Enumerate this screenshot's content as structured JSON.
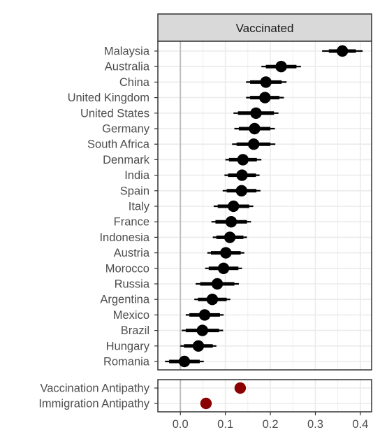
{
  "chart_data": {
    "type": "dot-whisker",
    "facet_title": "Vaccinated",
    "x_ticks": [
      0.0,
      0.1,
      0.2,
      0.3,
      0.4
    ],
    "x_tick_labels": [
      "0.0",
      "0.1",
      "0.2",
      "0.3",
      "0.4"
    ],
    "xlim": [
      -0.05,
      0.425
    ],
    "reference_line_x": 0,
    "grid": true,
    "colors": {
      "point": "#000000",
      "antipathy_point": "#8b0000",
      "reference_line": "#bdbdbd",
      "grid": "#ebebeb",
      "strip": "#d9d9d9",
      "border": "#333333"
    },
    "countries": [
      {
        "label": "Malaysia",
        "estimate": 0.36,
        "ci95": [
          0.315,
          0.405
        ],
        "ci90": [
          0.33,
          0.39
        ]
      },
      {
        "label": "Australia",
        "estimate": 0.224,
        "ci95": [
          0.18,
          0.268
        ],
        "ci90": [
          0.19,
          0.258
        ]
      },
      {
        "label": "China",
        "estimate": 0.19,
        "ci95": [
          0.146,
          0.236
        ],
        "ci90": [
          0.155,
          0.225
        ]
      },
      {
        "label": "United Kingdom",
        "estimate": 0.188,
        "ci95": [
          0.146,
          0.23
        ],
        "ci90": [
          0.155,
          0.22
        ]
      },
      {
        "label": "United States",
        "estimate": 0.168,
        "ci95": [
          0.118,
          0.218
        ],
        "ci90": [
          0.128,
          0.208
        ]
      },
      {
        "label": "Germany",
        "estimate": 0.165,
        "ci95": [
          0.12,
          0.21
        ],
        "ci90": [
          0.13,
          0.2
        ]
      },
      {
        "label": "South Africa",
        "estimate": 0.163,
        "ci95": [
          0.115,
          0.211
        ],
        "ci90": [
          0.125,
          0.2
        ]
      },
      {
        "label": "Denmark",
        "estimate": 0.139,
        "ci95": [
          0.1,
          0.18
        ],
        "ci90": [
          0.108,
          0.17
        ]
      },
      {
        "label": "India",
        "estimate": 0.137,
        "ci95": [
          0.098,
          0.176
        ],
        "ci90": [
          0.106,
          0.168
        ]
      },
      {
        "label": "Spain",
        "estimate": 0.136,
        "ci95": [
          0.094,
          0.178
        ],
        "ci90": [
          0.103,
          0.169
        ]
      },
      {
        "label": "Italy",
        "estimate": 0.118,
        "ci95": [
          0.074,
          0.162
        ],
        "ci90": [
          0.083,
          0.153
        ]
      },
      {
        "label": "France",
        "estimate": 0.113,
        "ci95": [
          0.069,
          0.157
        ],
        "ci90": [
          0.078,
          0.148
        ]
      },
      {
        "label": "Indonesia",
        "estimate": 0.11,
        "ci95": [
          0.072,
          0.148
        ],
        "ci90": [
          0.08,
          0.14
        ]
      },
      {
        "label": "Austria",
        "estimate": 0.101,
        "ci95": [
          0.06,
          0.142
        ],
        "ci90": [
          0.068,
          0.134
        ]
      },
      {
        "label": "Morocco",
        "estimate": 0.096,
        "ci95": [
          0.055,
          0.137
        ],
        "ci90": [
          0.063,
          0.129
        ]
      },
      {
        "label": "Russia",
        "estimate": 0.082,
        "ci95": [
          0.034,
          0.13
        ],
        "ci90": [
          0.044,
          0.12
        ]
      },
      {
        "label": "Argentina",
        "estimate": 0.071,
        "ci95": [
          0.031,
          0.111
        ],
        "ci90": [
          0.039,
          0.103
        ]
      },
      {
        "label": "Mexico",
        "estimate": 0.054,
        "ci95": [
          0.012,
          0.096
        ],
        "ci90": [
          0.02,
          0.088
        ]
      },
      {
        "label": "Brazil",
        "estimate": 0.049,
        "ci95": [
          0.003,
          0.095
        ],
        "ci90": [
          0.012,
          0.086
        ]
      },
      {
        "label": "Hungary",
        "estimate": 0.04,
        "ci95": [
          0.0,
          0.08
        ],
        "ci90": [
          0.008,
          0.072
        ]
      },
      {
        "label": "Romania",
        "estimate": 0.009,
        "ci95": [
          -0.034,
          0.052
        ],
        "ci90": [
          -0.025,
          0.043
        ]
      }
    ],
    "antipathy": [
      {
        "label": "Vaccination Antipathy",
        "estimate": 0.133
      },
      {
        "label": "Immigration Antipathy",
        "estimate": 0.057
      }
    ]
  }
}
